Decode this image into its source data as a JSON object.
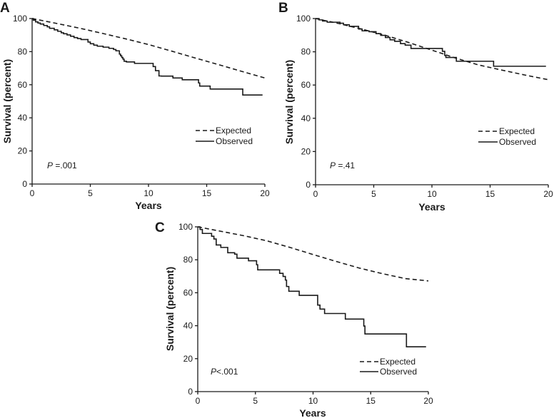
{
  "chart_data": [
    {
      "type": "line",
      "panel": "A",
      "xlabel": "Years",
      "ylabel": "Survival (percent)",
      "xlim": [
        0,
        20
      ],
      "ylim": [
        0,
        100
      ],
      "xticks": [
        "0",
        "5",
        "10",
        "15",
        "20"
      ],
      "yticks": [
        "0",
        "20",
        "40",
        "60",
        "80",
        "100"
      ],
      "xtick_values": [
        0,
        5,
        10,
        15,
        20
      ],
      "ytick_values": [
        0,
        20,
        40,
        60,
        80,
        100
      ],
      "grid": false,
      "legend": {
        "placement": "lower-right",
        "entries": [
          "Expected",
          "Observed"
        ]
      },
      "annotation": {
        "p_label": "P",
        "p_value": " =.001"
      },
      "series": [
        {
          "name": "Expected",
          "style": "dashed",
          "x": [
            0,
            2,
            4,
            6,
            8,
            10,
            12,
            14,
            16,
            18,
            20
          ],
          "y": [
            100,
            97.2,
            94.3,
            91.1,
            87.8,
            84.3,
            80.3,
            76.2,
            72.2,
            68.1,
            64.1
          ]
        },
        {
          "name": "Observed",
          "style": "step",
          "x": [
            0,
            0.1,
            0.3,
            0.5,
            0.7,
            1.0,
            1.3,
            1.5,
            1.9,
            2.2,
            2.5,
            2.7,
            3.0,
            3.3,
            3.6,
            3.9,
            4.2,
            4.8,
            5.0,
            5.3,
            5.6,
            6.1,
            6.6,
            7.0,
            7.2,
            7.5,
            7.6,
            7.7,
            7.8,
            7.9,
            8.1,
            8.8,
            10.4,
            10.6,
            10.9,
            11.1,
            12.1,
            12.9,
            14.3,
            14.4,
            15.3,
            18.1,
            19.8
          ],
          "y": [
            100,
            99,
            98,
            97.3,
            96.7,
            95.8,
            95,
            94.1,
            93.2,
            92.3,
            91.4,
            90.8,
            90.1,
            89.3,
            88.5,
            87.9,
            87.3,
            85.8,
            84.8,
            83.9,
            83.3,
            82.7,
            82,
            81.3,
            80.5,
            78.5,
            77.5,
            76.5,
            75.5,
            74.2,
            73.8,
            72.9,
            71.0,
            68.5,
            65.3,
            65.2,
            64.1,
            63.0,
            61.1,
            59.2,
            57.4,
            53.8,
            53.8
          ]
        }
      ]
    },
    {
      "type": "line",
      "panel": "B",
      "xlabel": "Years",
      "ylabel": "Survival (percent)",
      "xlim": [
        0,
        20
      ],
      "ylim": [
        0,
        100
      ],
      "xticks": [
        "0",
        "5",
        "10",
        "15",
        "20"
      ],
      "yticks": [
        "0",
        "20",
        "40",
        "60",
        "80",
        "100"
      ],
      "xtick_values": [
        0,
        5,
        10,
        15,
        20
      ],
      "ytick_values": [
        0,
        20,
        40,
        60,
        80,
        100
      ],
      "grid": false,
      "legend": {
        "placement": "lower-right",
        "entries": [
          "Expected",
          "Observed"
        ]
      },
      "annotation": {
        "p_label": "P",
        "p_value": " =.41"
      },
      "series": [
        {
          "name": "Expected",
          "style": "dashed",
          "x": [
            0,
            2,
            4,
            6,
            8,
            10,
            12,
            14,
            16,
            18,
            20
          ],
          "y": [
            100,
            97,
            93.6,
            89.9,
            85.6,
            81,
            76.3,
            72.1,
            69,
            66,
            63.2
          ]
        },
        {
          "name": "Observed",
          "style": "step",
          "x": [
            0,
            0.3,
            0.6,
            1.0,
            2.1,
            2.4,
            2.9,
            3.7,
            4.0,
            4.6,
            5.2,
            5.6,
            6.0,
            6.4,
            6.8,
            7.3,
            7.7,
            8.2,
            10.9,
            11.1,
            11.2,
            12.1,
            15.3,
            19.8
          ],
          "y": [
            100,
            99.2,
            98.5,
            97.8,
            97.2,
            96.3,
            95.3,
            93.7,
            92.6,
            92.1,
            90.9,
            89.9,
            88.6,
            87.2,
            86.3,
            84.9,
            84,
            82,
            80.3,
            77.8,
            76.6,
            74.3,
            71.3,
            71.3
          ]
        }
      ]
    },
    {
      "type": "line",
      "panel": "C",
      "xlabel": "Years",
      "ylabel": "Survival (percent)",
      "xlim": [
        0,
        20
      ],
      "ylim": [
        0,
        100
      ],
      "xticks": [
        "0",
        "5",
        "10",
        "15",
        "20"
      ],
      "yticks": [
        "0",
        "20",
        "40",
        "60",
        "80",
        "100"
      ],
      "xtick_values": [
        0,
        5,
        10,
        15,
        20
      ],
      "ytick_values": [
        0,
        20,
        40,
        60,
        80,
        100
      ],
      "grid": false,
      "legend": {
        "placement": "lower-right",
        "entries": [
          "Expected",
          "Observed"
        ]
      },
      "annotation": {
        "p_label": "P",
        "p_value": "<.001"
      },
      "series": [
        {
          "name": "Expected",
          "style": "dashed",
          "x": [
            0,
            2,
            4,
            6,
            8,
            10,
            12,
            14,
            16,
            18,
            20
          ],
          "y": [
            100,
            97.3,
            94.6,
            91.5,
            87.5,
            83.2,
            79,
            75,
            71.6,
            68.6,
            67.2
          ]
        },
        {
          "name": "Observed",
          "style": "step",
          "x": [
            0,
            0.2,
            0.4,
            1.2,
            1.4,
            1.6,
            2.0,
            2.6,
            3.2,
            3.4,
            4.4,
            5.1,
            5.2,
            7.1,
            7.4,
            7.6,
            7.7,
            7.9,
            8.8,
            10.4,
            10.6,
            11.0,
            11.2,
            12.8,
            14.4,
            14.5,
            18.1,
            19.8
          ],
          "y": [
            100,
            98.4,
            96,
            94.3,
            92.6,
            89,
            87.5,
            84.3,
            83.4,
            81,
            79.4,
            77,
            73.9,
            71.8,
            69.9,
            67.7,
            63.8,
            60.9,
            58.4,
            52.5,
            50.1,
            47.4,
            47.4,
            44,
            39.8,
            35,
            27.2,
            27.2
          ]
        }
      ]
    }
  ],
  "panels": [
    {
      "letter": "A"
    },
    {
      "letter": "B"
    },
    {
      "letter": "C"
    }
  ]
}
